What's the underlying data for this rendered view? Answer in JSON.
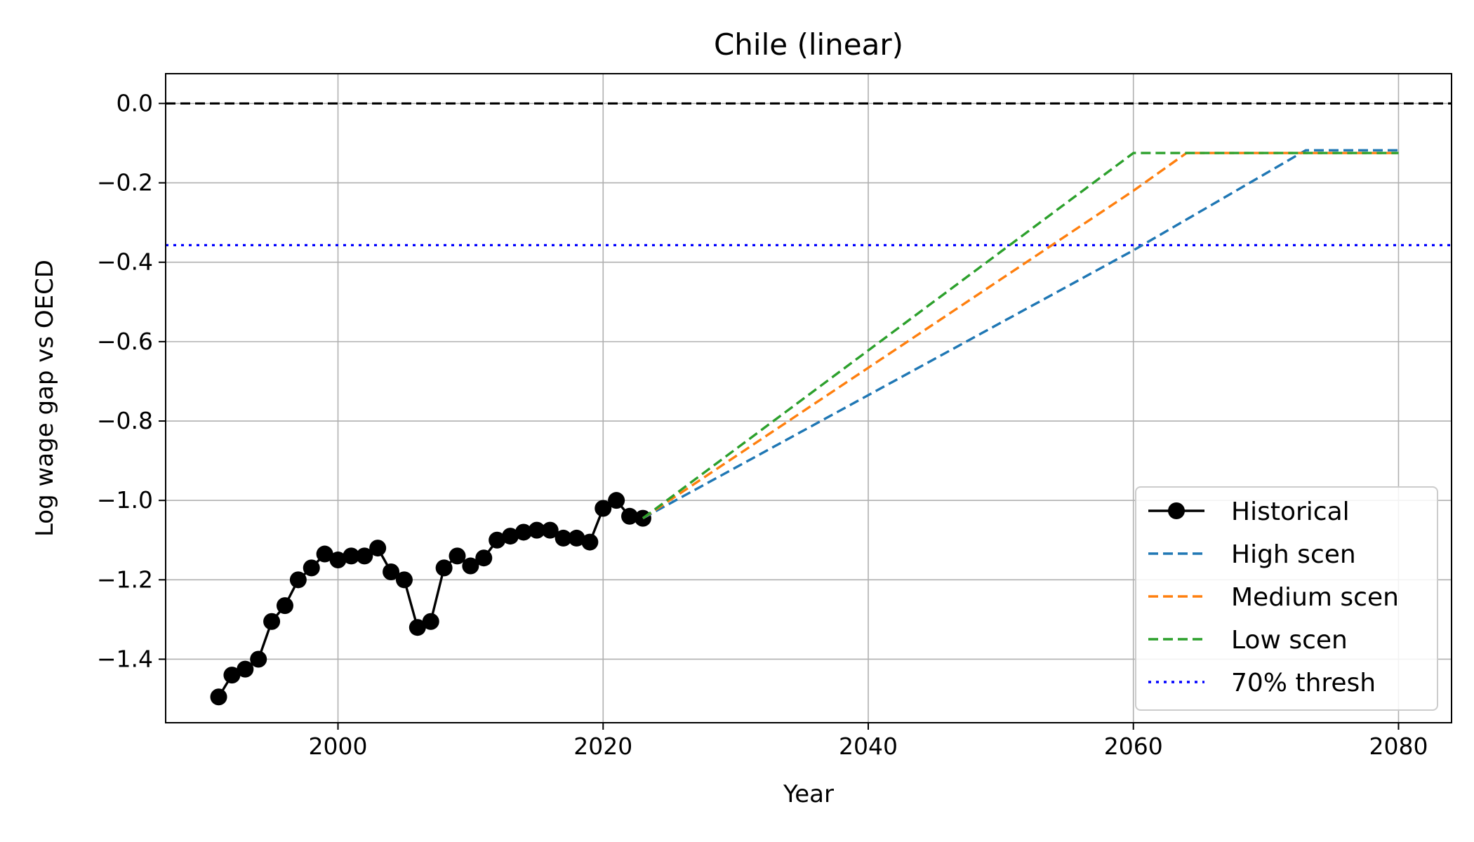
{
  "chart_data": {
    "type": "line",
    "title": "Chile (linear)",
    "xlabel": "Year",
    "ylabel": "Log wage gap vs OECD",
    "xlim": [
      1987,
      2084
    ],
    "ylim": [
      -1.56,
      0.075
    ],
    "xticks": [
      2000,
      2020,
      2040,
      2060,
      2080
    ],
    "yticks": [
      0.0,
      -0.2,
      -0.4,
      -0.6,
      -0.8,
      -1.0,
      -1.2,
      -1.4
    ],
    "ytick_labels": [
      "0.0",
      "−0.2",
      "−0.4",
      "−0.6",
      "−0.8",
      "−1.0",
      "−1.2",
      "−1.4"
    ],
    "grid": true,
    "legend_position": "lower-right",
    "reference_lines": [
      {
        "y": 0.0,
        "color": "#000000",
        "style": "dashed"
      },
      {
        "y": -0.357,
        "color": "#0000ff",
        "style": "dotted",
        "name": "70% thresh"
      }
    ],
    "series": [
      {
        "name": "Historical",
        "color": "#000000",
        "style": "solid-markers",
        "x": [
          1991,
          1992,
          1993,
          1994,
          1995,
          1996,
          1997,
          1998,
          1999,
          2000,
          2001,
          2002,
          2003,
          2004,
          2005,
          2006,
          2007,
          2008,
          2009,
          2010,
          2011,
          2012,
          2013,
          2014,
          2015,
          2016,
          2017,
          2018,
          2019,
          2020,
          2021,
          2022,
          2023
        ],
        "y": [
          -1.495,
          -1.44,
          -1.425,
          -1.4,
          -1.305,
          -1.265,
          -1.2,
          -1.17,
          -1.135,
          -1.15,
          -1.14,
          -1.14,
          -1.12,
          -1.18,
          -1.2,
          -1.32,
          -1.305,
          -1.17,
          -1.14,
          -1.165,
          -1.145,
          -1.1,
          -1.09,
          -1.08,
          -1.075,
          -1.075,
          -1.095,
          -1.095,
          -1.105,
          -1.02,
          -1.0,
          -1.04,
          -1.045
        ]
      },
      {
        "name": "High scen",
        "color": "#1f77b4",
        "style": "dashed",
        "x": [
          2023,
          2060,
          2073,
          2080
        ],
        "y": [
          -1.045,
          -0.37,
          -0.118,
          -0.118
        ]
      },
      {
        "name": "Medium scen",
        "color": "#ff7f0e",
        "style": "dashed",
        "x": [
          2023,
          2060,
          2064,
          2080
        ],
        "y": [
          -1.045,
          -0.22,
          -0.125,
          -0.125
        ]
      },
      {
        "name": "Low scen",
        "color": "#2ca02c",
        "style": "dashed",
        "x": [
          2023,
          2060,
          2080
        ],
        "y": [
          -1.045,
          -0.125,
          -0.125
        ]
      }
    ],
    "legend": [
      {
        "label": "Historical",
        "color": "#000000",
        "style": "solid-markers"
      },
      {
        "label": "High scen",
        "color": "#1f77b4",
        "style": "dashed"
      },
      {
        "label": "Medium scen",
        "color": "#ff7f0e",
        "style": "dashed"
      },
      {
        "label": "Low scen",
        "color": "#2ca02c",
        "style": "dashed"
      },
      {
        "label": "70% thresh",
        "color": "#0000ff",
        "style": "dotted"
      }
    ]
  }
}
